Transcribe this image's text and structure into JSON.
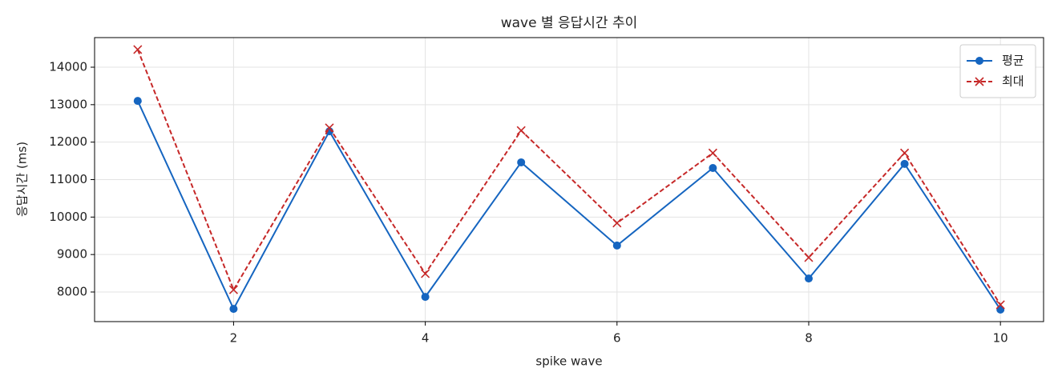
{
  "chart_data": {
    "type": "line",
    "title": "wave 별 응답시간 추이",
    "xlabel": "spike wave",
    "ylabel": "응답시간 (ms)",
    "x": [
      1,
      2,
      3,
      4,
      5,
      6,
      7,
      8,
      9,
      10
    ],
    "series": [
      {
        "name": "평균",
        "color": "#1565c0",
        "linestyle": "solid",
        "marker": "circle",
        "values": [
          13100,
          7550,
          12290,
          7870,
          11460,
          9240,
          11310,
          8360,
          11420,
          7530
        ]
      },
      {
        "name": "최대",
        "color": "#c62828",
        "linestyle": "dashed",
        "marker": "x",
        "values": [
          14470,
          8060,
          12380,
          8490,
          12310,
          9840,
          11710,
          8920,
          11710,
          7660
        ]
      }
    ],
    "xlim": [
      0.55,
      10.45
    ],
    "xticks": [
      2,
      4,
      6,
      8,
      10
    ],
    "ylim": [
      7210,
      14790
    ],
    "yticks": [
      8000,
      9000,
      10000,
      11000,
      12000,
      13000,
      14000
    ],
    "grid": true,
    "legend": "upper right"
  }
}
